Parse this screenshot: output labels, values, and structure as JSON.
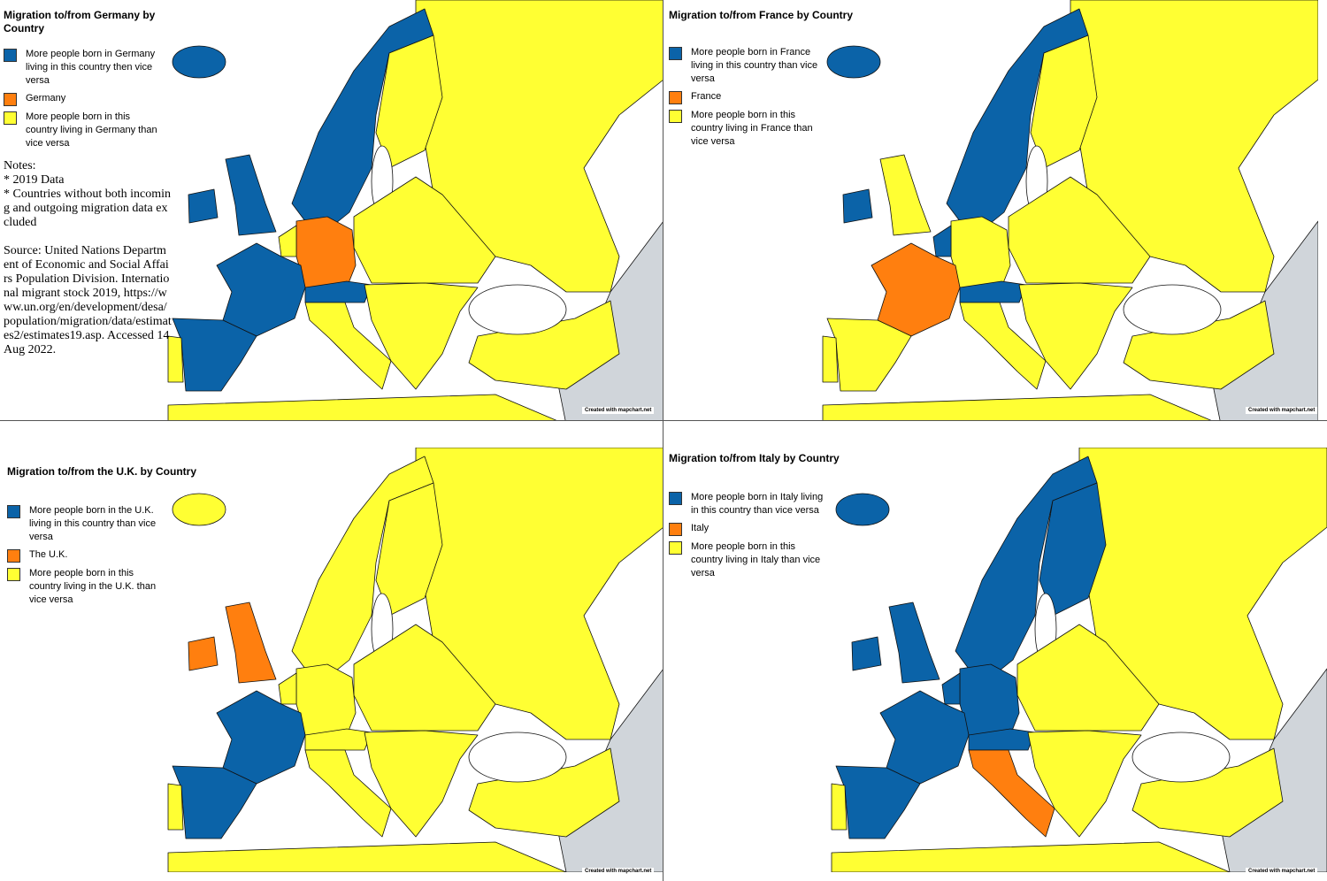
{
  "panels": [
    {
      "title": "Migration to/from Germany by Country",
      "legend": [
        {
          "label": "More people born in Germany living in this country then vice versa",
          "color": "#0b63a8"
        },
        {
          "label": "Germany",
          "color": "#ff7f0f"
        },
        {
          "label": "More people born in this country living in Germany than vice versa",
          "color": "#ffff33"
        }
      ],
      "notes": [
        "Notes:",
        "* 2019 Data",
        "* Countries without both incoming and outgoing migration data excluded",
        "Source: United Nations Department of Economic and Social Affairs Population Division. International migrant stock 2019, https://www.un.org/en/development/desa/population/migration/data/estimates2/estimates19.asp. Accessed 14 Aug 2022."
      ],
      "credit": "Created with mapchart.net"
    },
    {
      "title": "Migration to/from France by Country",
      "legend": [
        {
          "label": "More people born in France living in this country than vice versa",
          "color": "#0b63a8"
        },
        {
          "label": "France",
          "color": "#ff7f0f"
        },
        {
          "label": "More people born in this country living in France than vice versa",
          "color": "#ffff33"
        }
      ],
      "credit": "Created with mapchart.net"
    },
    {
      "title": "Migration to/from the U.K. by Country",
      "legend": [
        {
          "label": "More people born in the U.K. living in this country than vice versa",
          "color": "#0b63a8"
        },
        {
          "label": "The U.K.",
          "color": "#ff7f0f"
        },
        {
          "label": "More people born in this country living in the U.K. than vice versa",
          "color": "#ffff33"
        }
      ],
      "credit": "Created with mapchart.net"
    },
    {
      "title": "Migration to/from Italy by Country",
      "legend": [
        {
          "label": "More people born in Italy living in this country than vice versa",
          "color": "#0b63a8"
        },
        {
          "label": "Italy",
          "color": "#ff7f0f"
        },
        {
          "label": "More people born in this country living in Italy than vice versa",
          "color": "#ffff33"
        }
      ],
      "credit": "Created with mapchart.net"
    }
  ]
}
